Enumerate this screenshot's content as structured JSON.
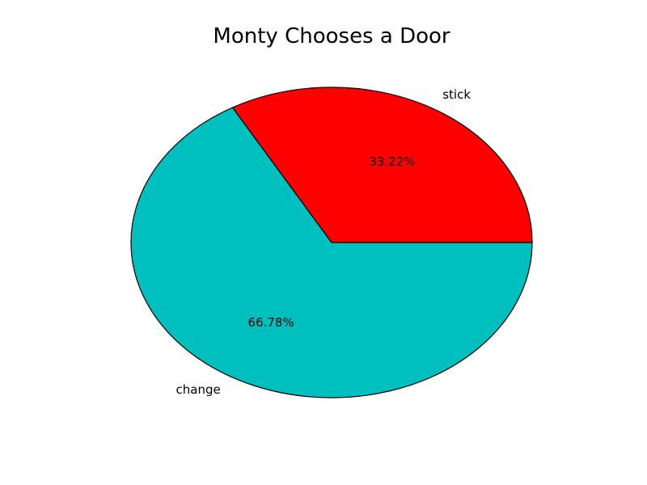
{
  "chart_data": {
    "type": "pie",
    "title": "Monty Chooses a Door",
    "slices": [
      {
        "label": "stick",
        "value": 33.22,
        "pct_text": "33.22%",
        "color": "#ff0000"
      },
      {
        "label": "change",
        "value": 66.78,
        "pct_text": "66.78%",
        "color": "#00bfbf"
      }
    ],
    "start_angle_deg": 0,
    "direction": "counterclockwise",
    "edge_color": "#000000"
  }
}
